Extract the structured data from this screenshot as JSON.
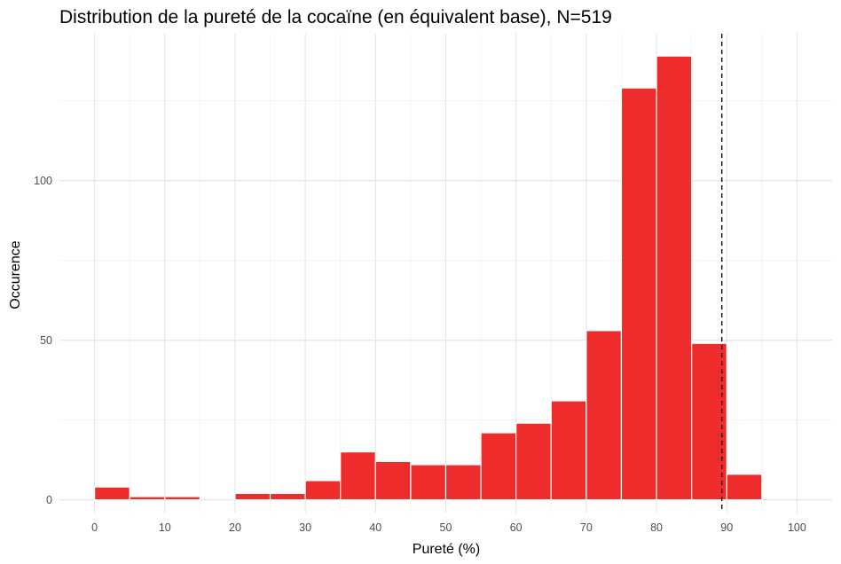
{
  "chart_data": {
    "type": "bar",
    "title": "Distribution de la pureté de la cocaïne (en équivalent base), N=519",
    "xlabel": "Pureté (%)",
    "ylabel": "Occurence",
    "xlim": [
      -5,
      105
    ],
    "ylim": [
      -4,
      146
    ],
    "x_ticks": [
      "0",
      "10",
      "20",
      "30",
      "40",
      "50",
      "60",
      "70",
      "80",
      "90",
      "100"
    ],
    "y_ticks": [
      "0",
      "50",
      "100"
    ],
    "grid": true,
    "bar_color": "#ee2c2c",
    "bin_width": 5,
    "bins": [
      {
        "start": 0,
        "value": 4
      },
      {
        "start": 5,
        "value": 1
      },
      {
        "start": 10,
        "value": 1
      },
      {
        "start": 15,
        "value": 0
      },
      {
        "start": 20,
        "value": 2
      },
      {
        "start": 25,
        "value": 2
      },
      {
        "start": 30,
        "value": 6
      },
      {
        "start": 35,
        "value": 15
      },
      {
        "start": 40,
        "value": 12
      },
      {
        "start": 45,
        "value": 11
      },
      {
        "start": 50,
        "value": 11
      },
      {
        "start": 55,
        "value": 21
      },
      {
        "start": 60,
        "value": 24
      },
      {
        "start": 65,
        "value": 31
      },
      {
        "start": 70,
        "value": 53
      },
      {
        "start": 75,
        "value": 129
      },
      {
        "start": 80,
        "value": 139
      },
      {
        "start": 85,
        "value": 49
      },
      {
        "start": 90,
        "value": 8
      },
      {
        "start": 95,
        "value": 0
      }
    ],
    "reference_line": {
      "x": 89.3,
      "style": "dashed",
      "color": "#000000"
    }
  }
}
